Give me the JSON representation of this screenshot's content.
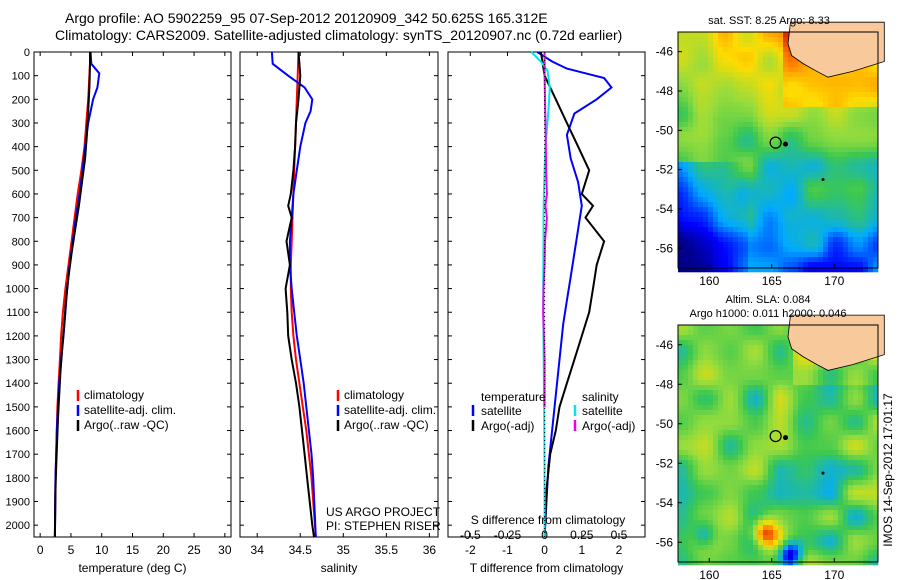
{
  "header": {
    "line1": "Argo profile: AO 5902259_95 07-Sep-2012 20120909_342 50.625S 165.312E",
    "line2": "Climatology: CARS2009. Satellite-adjusted climatology: synTS_20120907.nc (0.72d earlier)"
  },
  "colors": {
    "climatology": "#ff0000",
    "satellite": "#0000ff",
    "argo": "#000000",
    "sat_salinity": "#00e5ee",
    "argo_salinity": "#ee00ee"
  },
  "chart_data": [
    {
      "type": "line",
      "xlabel": "temperature (deg C)",
      "ylabel": "",
      "xlim": [
        -1,
        31
      ],
      "ylim": [
        2050,
        0
      ],
      "xticks": [
        0,
        5,
        10,
        15,
        20,
        25,
        30
      ],
      "yticks": [
        0,
        100,
        200,
        300,
        400,
        500,
        600,
        700,
        800,
        900,
        1000,
        1100,
        1200,
        1300,
        1400,
        1500,
        1600,
        1700,
        1800,
        1900,
        2000
      ],
      "legend": {
        "position": "lower-center",
        "entries": [
          "climatology",
          "satellite-adj. clim.",
          "Argo(..raw -QC)"
        ]
      },
      "series": [
        {
          "name": "climatology",
          "color": "#ff0000",
          "x": [
            8.2,
            8.0,
            7.8,
            7.5,
            7.2,
            6.7,
            6.1,
            5.6,
            5.1,
            4.6,
            4.1,
            3.7,
            3.4,
            3.2,
            3.0,
            2.8,
            2.7,
            2.6,
            2.5,
            2.45,
            2.4
          ],
          "y": [
            0,
            100,
            200,
            300,
            400,
            500,
            600,
            700,
            800,
            900,
            1000,
            1100,
            1200,
            1300,
            1400,
            1500,
            1600,
            1700,
            1800,
            1900,
            2050
          ]
        },
        {
          "name": "satellite-adj. clim.",
          "color": "#0000ff",
          "x": [
            8.2,
            8.3,
            9.6,
            9.3,
            8.6,
            7.8,
            7.3,
            6.9,
            6.4,
            5.8,
            5.3,
            4.8,
            4.4,
            4.1,
            3.8,
            3.4,
            3.1,
            2.9,
            2.7,
            2.6,
            2.5,
            2.45,
            2.4
          ],
          "y": [
            0,
            50,
            90,
            150,
            200,
            300,
            400,
            500,
            600,
            700,
            800,
            900,
            1000,
            1100,
            1200,
            1300,
            1400,
            1500,
            1600,
            1700,
            1800,
            1900,
            2050
          ]
        },
        {
          "name": "Argo(..raw -QC)",
          "color": "#000000",
          "x": [
            8.1,
            8.1,
            8.0,
            7.8,
            7.6,
            7.3,
            6.8,
            6.3,
            5.7,
            5.1,
            4.6,
            4.2,
            3.9,
            3.6,
            3.3,
            3.1,
            2.9,
            2.75,
            2.6,
            2.5,
            2.45,
            2.4
          ],
          "y": [
            0,
            50,
            150,
            250,
            350,
            450,
            550,
            650,
            750,
            850,
            950,
            1050,
            1150,
            1250,
            1350,
            1450,
            1550,
            1650,
            1750,
            1850,
            1950,
            2050
          ]
        }
      ]
    },
    {
      "type": "line",
      "xlabel": "salinity",
      "ylabel": "",
      "xlim": [
        33.8,
        36.1
      ],
      "ylim": [
        2050,
        0
      ],
      "xticks": [
        34,
        34.5,
        35,
        35.5,
        36
      ],
      "yticks": [
        0,
        100,
        200,
        300,
        400,
        500,
        600,
        700,
        800,
        900,
        1000,
        1100,
        1200,
        1300,
        1400,
        1500,
        1600,
        1700,
        1800,
        1900,
        2000
      ],
      "legend": {
        "position": "lower-center",
        "entries": [
          "climatology",
          "satellite-adj. clim.",
          "Argo(..raw -QC)"
        ]
      },
      "annotations": [
        "US ARGO PROJECT",
        "PI: STEPHEN RISER"
      ],
      "series": [
        {
          "name": "climatology",
          "color": "#ff0000",
          "x": [
            34.48,
            34.47,
            34.46,
            34.45,
            34.44,
            34.43,
            34.42,
            34.41,
            34.4,
            34.39,
            34.39,
            34.4,
            34.42,
            34.45,
            34.49,
            34.53,
            34.57,
            34.6,
            34.63,
            34.65,
            34.68
          ],
          "y": [
            0,
            100,
            200,
            300,
            400,
            500,
            600,
            700,
            800,
            900,
            1000,
            1100,
            1200,
            1300,
            1400,
            1500,
            1600,
            1700,
            1800,
            1900,
            2050
          ]
        },
        {
          "name": "satellite-adj. clim.",
          "color": "#0000ff",
          "x": [
            34.17,
            34.18,
            34.36,
            34.55,
            34.64,
            34.62,
            34.56,
            34.5,
            34.46,
            34.42,
            34.4,
            34.38,
            34.38,
            34.4,
            34.43,
            34.46,
            34.5,
            34.54,
            34.57,
            34.6,
            34.63,
            34.65,
            34.68
          ],
          "y": [
            0,
            50,
            100,
            150,
            200,
            250,
            300,
            400,
            500,
            600,
            700,
            800,
            900,
            1000,
            1100,
            1200,
            1300,
            1400,
            1500,
            1600,
            1700,
            1800,
            2050
          ]
        },
        {
          "name": "Argo(..raw -QC)",
          "color": "#000000",
          "x": [
            34.48,
            34.5,
            34.48,
            34.45,
            34.44,
            34.42,
            34.39,
            34.36,
            34.4,
            34.34,
            34.38,
            34.33,
            34.35,
            34.36,
            34.4,
            34.45,
            34.49,
            34.52,
            34.55,
            34.58,
            34.61,
            34.64,
            34.66
          ],
          "y": [
            0,
            100,
            200,
            300,
            400,
            500,
            600,
            650,
            700,
            800,
            900,
            1000,
            1100,
            1200,
            1300,
            1400,
            1500,
            1600,
            1700,
            1800,
            1900,
            2000,
            2050
          ]
        }
      ]
    },
    {
      "type": "line",
      "xlabel": "T difference from climatology",
      "xlabel2": "S difference from climatology",
      "xlim": [
        -2.6,
        2.7
      ],
      "ylim": [
        2050,
        0
      ],
      "xticks": [
        -2,
        -1,
        0,
        1,
        2
      ],
      "xticks_top_values": [
        -0.5,
        -0.25,
        0,
        0.25,
        0.5
      ],
      "xticks_top_labels": [
        "-0.5",
        "-0.25",
        "0",
        "0.25",
        "0.5"
      ],
      "yticks": [
        0,
        100,
        200,
        300,
        400,
        500,
        600,
        700,
        800,
        900,
        1000,
        1100,
        1200,
        1300,
        1400,
        1500,
        1600,
        1700,
        1800,
        1900,
        2000
      ],
      "legend": {
        "position": "lower-center",
        "entries": [
          "temperature",
          "satellite",
          "Argo(-adj)",
          "salinity",
          "satellite",
          "Argo(-adj)"
        ]
      },
      "series": [
        {
          "name": "temperature satellite",
          "color": "#0000ff",
          "x": [
            -0.2,
            0.2,
            0.6,
            1.1,
            1.6,
            1.8,
            1.4,
            0.8,
            0.6,
            0.7,
            0.9,
            1.0,
            0.9,
            0.8,
            0.7,
            0.6,
            0.5,
            0.4,
            0.3,
            0.2,
            0.1,
            0.05,
            0.0
          ],
          "y": [
            0,
            40,
            70,
            90,
            110,
            150,
            200,
            260,
            350,
            450,
            550,
            650,
            750,
            850,
            950,
            1050,
            1150,
            1300,
            1450,
            1600,
            1750,
            1900,
            2050
          ]
        },
        {
          "name": "temperature Argo(-adj)",
          "color": "#000000",
          "x": [
            -0.1,
            0.0,
            0.3,
            0.6,
            0.9,
            1.2,
            1.0,
            1.3,
            1.1,
            1.6,
            1.4,
            1.3,
            1.2,
            1.0,
            0.8,
            0.6,
            0.4,
            0.3,
            0.15,
            0.05,
            0.0
          ],
          "y": [
            0,
            100,
            200,
            300,
            400,
            500,
            600,
            650,
            700,
            800,
            900,
            1000,
            1100,
            1200,
            1300,
            1400,
            1500,
            1600,
            1700,
            1850,
            2050
          ]
        },
        {
          "name": "salinity satellite",
          "color": "#00e5ee",
          "x": [
            -0.36,
            -0.1,
            0.08,
            0.14,
            0.1,
            0.02,
            0.0,
            -0.02,
            -0.03,
            -0.03,
            -0.04,
            -0.03,
            -0.02,
            -0.01,
            0.0,
            0.0
          ],
          "y": [
            0,
            40,
            80,
            150,
            250,
            400,
            500,
            600,
            700,
            800,
            1000,
            1200,
            1400,
            1600,
            1800,
            2050
          ]
        },
        {
          "name": "salinity Argo(-adj)",
          "color": "#ee00ee",
          "x": [
            0.0,
            0.0,
            0.01,
            0.02,
            0.03,
            0.04,
            0.05,
            0.06,
            0.02,
            0.06,
            0.01,
            0.0,
            -0.03,
            -0.04,
            0.0,
            0.0
          ],
          "y": [
            0,
            100,
            200,
            300,
            400,
            500,
            550,
            600,
            650,
            700,
            800,
            900,
            1000,
            1100,
            1300,
            1500
          ]
        }
      ]
    },
    {
      "type": "heatmap",
      "title": "sat. SST: 8.25 Argo: 8.33",
      "xlim": [
        157.5,
        173.5
      ],
      "ylim": [
        -57,
        -45
      ],
      "xticks": [
        160,
        165,
        170
      ],
      "yticks": [
        -46,
        -48,
        -50,
        -52,
        -54,
        -56
      ],
      "marker": {
        "lon": 165.312,
        "lat": -50.625
      }
    },
    {
      "type": "heatmap",
      "title": "Altim. SLA: 0.084",
      "subtitle": "Argo h1000: 0.011 h2000: 0.046",
      "xlim": [
        157.5,
        173.5
      ],
      "ylim": [
        -57,
        -45
      ],
      "xticks": [
        160,
        165,
        170
      ],
      "yticks": [
        -46,
        -48,
        -50,
        -52,
        -54,
        -56
      ],
      "marker": {
        "lon": 165.312,
        "lat": -50.625
      }
    }
  ],
  "footer": {
    "imos_stamp": "IMOS 14-Sep-2012 17:01:17"
  }
}
